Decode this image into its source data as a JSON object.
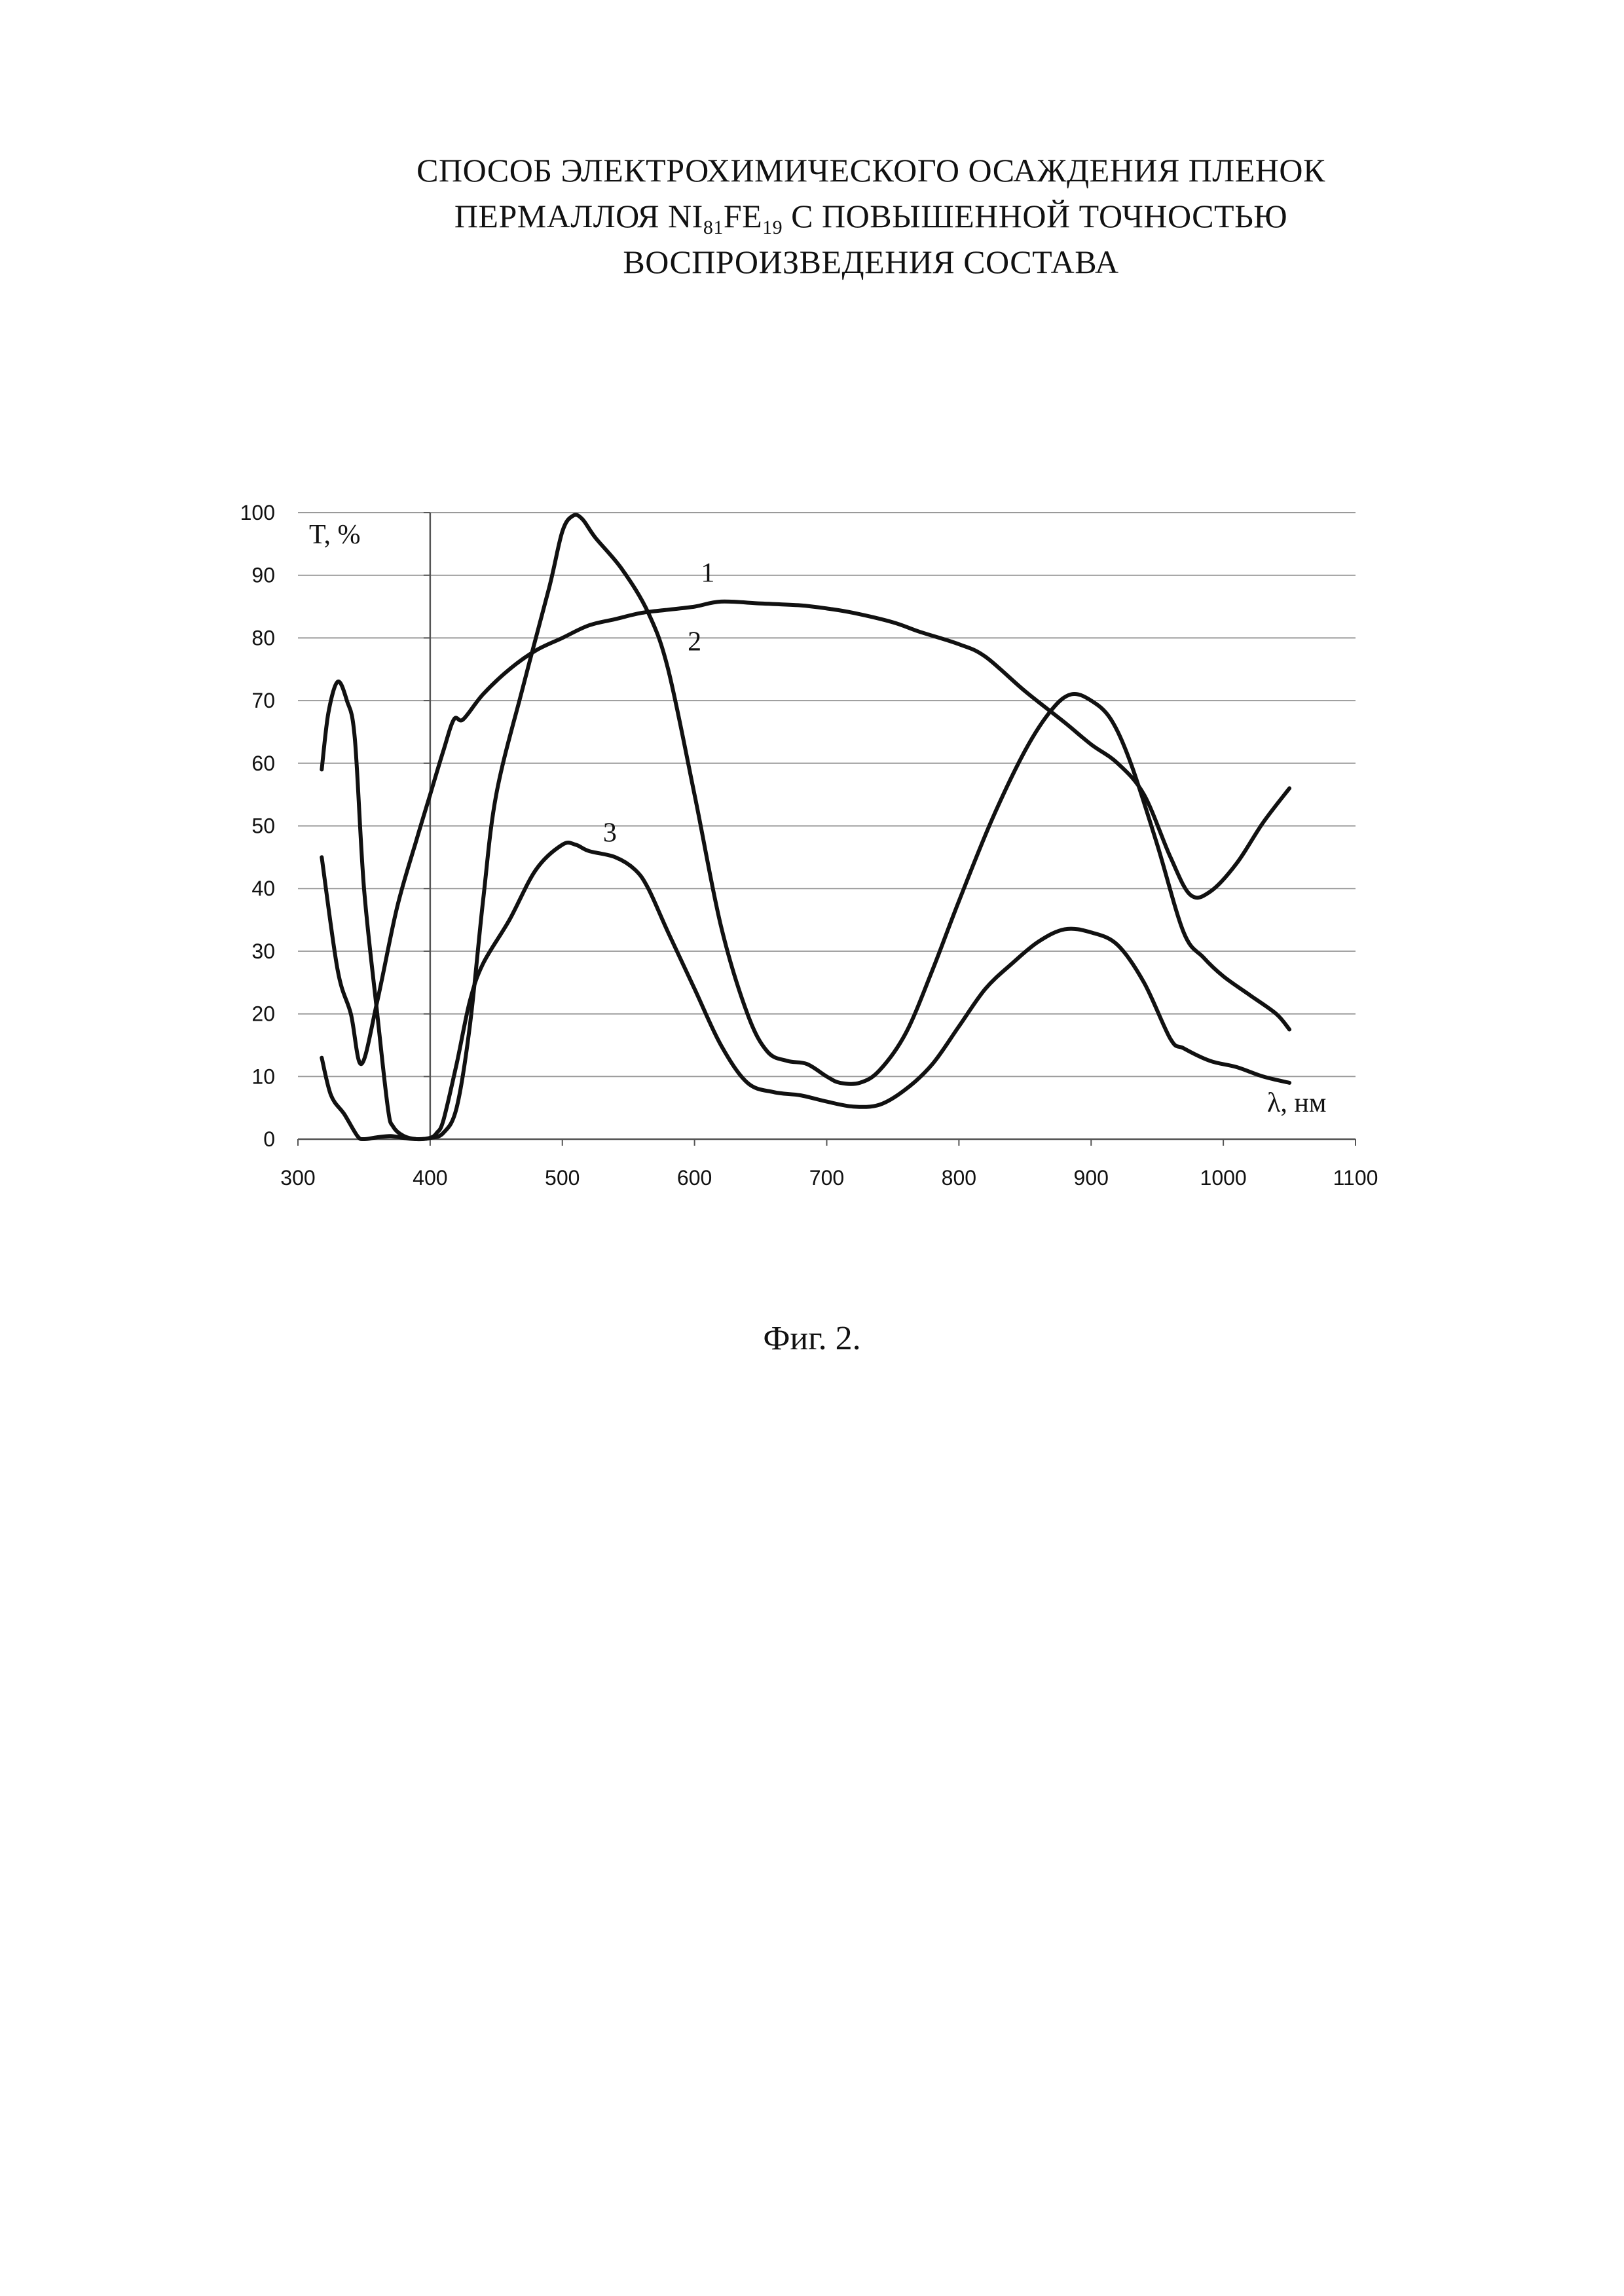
{
  "document": {
    "title_line1": "СПОСОБ ЭЛЕКТРОХИМИЧЕСКОГО ОСАЖДЕНИЯ ПЛЕНОК",
    "title_line2_a": "ПЕРМАЛЛОЯ NI",
    "title_line2_sub1": "81",
    "title_line2_b": "FE",
    "title_line2_sub2": "19",
    "title_line2_c": " С ПОВЫШЕННОЙ ТОЧНОСТЬЮ",
    "title_line3": "ВОСПРОИЗВЕДЕНИЯ СОСТАВА",
    "caption": "Фиг. 2."
  },
  "chart_data": {
    "type": "line",
    "xlabel": "λ, нм",
    "ylabel": "T, %",
    "xlim": [
      300,
      1100
    ],
    "ylim": [
      0,
      100
    ],
    "xticks": [
      300,
      400,
      500,
      600,
      700,
      800,
      900,
      1000,
      1100
    ],
    "yticks": [
      0,
      10,
      20,
      30,
      40,
      50,
      60,
      70,
      80,
      90,
      100
    ],
    "grid": "horizontal",
    "series": [
      {
        "name": "1",
        "x": [
          318,
          330,
          340,
          348,
          360,
          375,
          390,
          400,
          410,
          418,
          425,
          440,
          460,
          480,
          500,
          520,
          540,
          560,
          580,
          600,
          620,
          650,
          680,
          700,
          720,
          750,
          770,
          800,
          820,
          850,
          880,
          900,
          920,
          940,
          960,
          975,
          990,
          1010,
          1030,
          1050
        ],
        "y": [
          45,
          27,
          20,
          12,
          22,
          37,
          48,
          55,
          62,
          67,
          67,
          71,
          75,
          78,
          80,
          82,
          83,
          84,
          84.5,
          85,
          85.8,
          85.5,
          85.2,
          84.7,
          84,
          82.5,
          81,
          79,
          77,
          71.5,
          66.5,
          63,
          60,
          55,
          45,
          39,
          39.5,
          44,
          50.5,
          56
        ]
      },
      {
        "name": "2",
        "x": [
          318,
          323,
          330,
          337,
          343,
          350,
          360,
          368,
          372,
          380,
          390,
          400,
          410,
          420,
          430,
          440,
          450,
          470,
          490,
          500,
          508,
          515,
          525,
          545,
          565,
          580,
          600,
          620,
          640,
          655,
          670,
          685,
          700,
          710,
          725,
          740,
          760,
          780,
          800,
          825,
          850,
          870,
          885,
          900,
          915,
          930,
          950,
          970,
          985,
          1000,
          1020,
          1040,
          1050
        ],
        "y": [
          59,
          68,
          73,
          70,
          64,
          40,
          20,
          5,
          2,
          0.5,
          0,
          0.2,
          1,
          5,
          18,
          38,
          55,
          72,
          88,
          97,
          99.5,
          99,
          96,
          91,
          84,
          75,
          55,
          34,
          20,
          14,
          12.5,
          12,
          10,
          9,
          9,
          11,
          17,
          27,
          38,
          51,
          62,
          68.5,
          71,
          70,
          67,
          60,
          47,
          33,
          29,
          26,
          23,
          20,
          17.5
        ]
      },
      {
        "name": "3",
        "x": [
          318,
          325,
          335,
          345,
          350,
          360,
          370,
          380,
          390,
          400,
          405,
          410,
          420,
          430,
          440,
          460,
          480,
          500,
          510,
          520,
          540,
          555,
          565,
          580,
          600,
          620,
          640,
          660,
          680,
          700,
          720,
          740,
          760,
          780,
          800,
          820,
          840,
          860,
          880,
          900,
          920,
          940,
          960,
          970,
          990,
          1010,
          1030,
          1050
        ],
        "y": [
          13,
          7,
          4,
          0.5,
          0,
          0.3,
          0.5,
          0.2,
          0,
          0.2,
          1,
          3,
          12,
          22,
          28,
          35,
          43,
          47,
          47,
          46,
          45,
          43,
          40,
          33,
          24,
          15,
          9,
          7.5,
          7,
          6,
          5.2,
          5.5,
          8,
          12,
          18,
          24,
          28,
          31.5,
          33.5,
          33,
          31,
          25,
          16,
          14.5,
          12.5,
          11.5,
          10,
          9
        ]
      }
    ],
    "annotations": [
      {
        "text": "1",
        "x": 610,
        "y": 89
      },
      {
        "text": "2",
        "x": 600,
        "y": 78
      },
      {
        "text": "3",
        "x": 536,
        "y": 47.5
      }
    ]
  }
}
